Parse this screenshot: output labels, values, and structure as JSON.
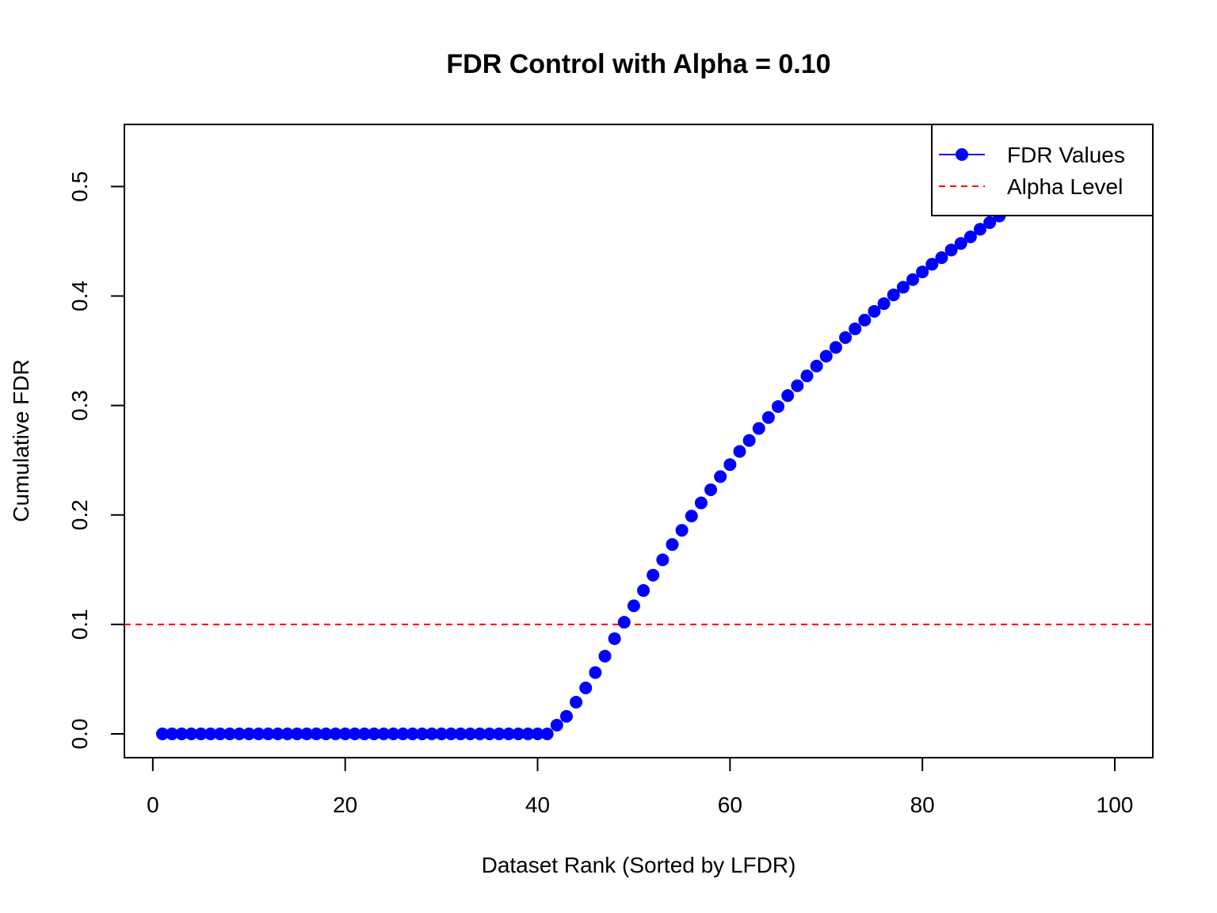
{
  "chart_data": {
    "type": "scatter",
    "title": "FDR Control with Alpha = 0.10",
    "xlabel": "Dataset Rank (Sorted by LFDR)",
    "ylabel": "Cumulative FDR",
    "xlim": [
      1,
      100
    ],
    "ylim": [
      0,
      0.535
    ],
    "xticks": [
      0,
      20,
      40,
      60,
      80,
      100
    ],
    "xtick_labels": [
      "0",
      "20",
      "40",
      "60",
      "80",
      "100"
    ],
    "yticks": [
      0,
      0.1,
      0.2,
      0.3,
      0.4,
      0.5
    ],
    "ytick_labels": [
      "0.0",
      "0.1",
      "0.2",
      "0.3",
      "0.4",
      "0.5"
    ],
    "grid": false,
    "legend_position": "top-right",
    "series": [
      {
        "name": "FDR Values",
        "color": "#0000ff",
        "style": "points",
        "x": [
          1,
          2,
          3,
          4,
          5,
          6,
          7,
          8,
          9,
          10,
          11,
          12,
          13,
          14,
          15,
          16,
          17,
          18,
          19,
          20,
          21,
          22,
          23,
          24,
          25,
          26,
          27,
          28,
          29,
          30,
          31,
          32,
          33,
          34,
          35,
          36,
          37,
          38,
          39,
          40,
          41,
          42,
          43,
          44,
          45,
          46,
          47,
          48,
          49,
          50,
          51,
          52,
          53,
          54,
          55,
          56,
          57,
          58,
          59,
          60,
          61,
          62,
          63,
          64,
          65,
          66,
          67,
          68,
          69,
          70,
          71,
          72,
          73,
          74,
          75,
          76,
          77,
          78,
          79,
          80,
          81,
          82,
          83,
          84,
          85,
          86,
          87,
          88,
          89,
          90,
          91,
          92,
          93,
          94,
          95,
          96,
          97,
          98,
          99,
          100
        ],
        "values": [
          0,
          0,
          0,
          0,
          0,
          0,
          0,
          0,
          0,
          0,
          0,
          0,
          0,
          0,
          0,
          0,
          0,
          0,
          0,
          0,
          0,
          0,
          0,
          0,
          0,
          0,
          0,
          0,
          0,
          0,
          0,
          0,
          0,
          0,
          0,
          0,
          0,
          0,
          0,
          0,
          0,
          0.008,
          0.016,
          0.029,
          0.042,
          0.056,
          0.071,
          0.087,
          0.102,
          0.117,
          0.131,
          0.145,
          0.159,
          0.173,
          0.186,
          0.199,
          0.211,
          0.223,
          0.235,
          0.246,
          0.258,
          0.268,
          0.279,
          0.289,
          0.299,
          0.309,
          0.318,
          0.327,
          0.336,
          0.345,
          0.353,
          0.362,
          0.37,
          0.378,
          0.386,
          0.393,
          0.401,
          0.408,
          0.415,
          0.422,
          0.429,
          0.435,
          0.442,
          0.448,
          0.454,
          0.461,
          0.467,
          0.473,
          0.479,
          0.484,
          0.49,
          0.496,
          0.501,
          0.506,
          0.511,
          0.516,
          0.521,
          0.526,
          0.53,
          0.534
        ]
      },
      {
        "name": "Alpha Level",
        "color": "#ff0000",
        "style": "dashed-hline",
        "y": 0.1
      }
    ]
  }
}
